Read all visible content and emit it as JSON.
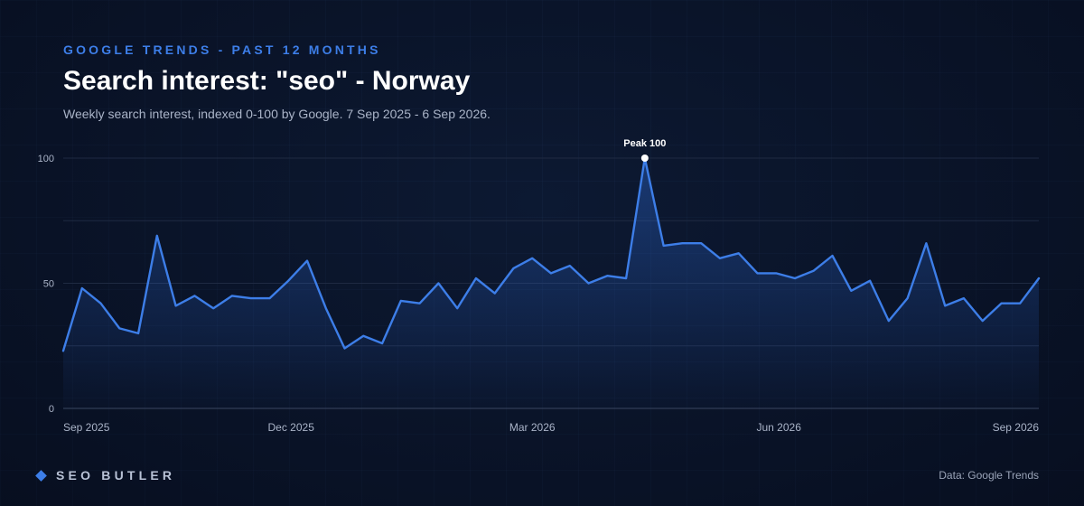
{
  "header": {
    "eyebrow": "GOOGLE TRENDS - PAST 12 MONTHS",
    "title": "Search interest: \"seo\" - Norway",
    "subtitle": "Weekly search interest, indexed 0-100 by Google. 7 Sep 2025 - 6 Sep 2026."
  },
  "chart_data": {
    "type": "area",
    "title": "Search interest: \"seo\" - Norway",
    "xlabel": "",
    "ylabel": "",
    "x_range": [
      "2025-09-07",
      "2026-09-06"
    ],
    "ylim": [
      0,
      100
    ],
    "y_ticks": [
      0,
      50,
      100
    ],
    "x_ticks": [
      {
        "label": "Sep 2025",
        "date": "2025-09-07"
      },
      {
        "label": "Dec 2025",
        "date": "2025-12-01"
      },
      {
        "label": "Mar 2026",
        "date": "2026-03-01"
      },
      {
        "label": "Jun 2026",
        "date": "2026-06-01"
      },
      {
        "label": "Sep 2026",
        "date": "2026-09-06"
      }
    ],
    "grid": true,
    "series": [
      {
        "color": "#3d7ee8",
        "values": [
          23,
          48,
          42,
          32,
          30,
          69,
          41,
          45,
          40,
          45,
          44,
          44,
          51,
          59,
          40,
          24,
          29,
          26,
          43,
          42,
          50,
          40,
          52,
          46,
          56,
          60,
          54,
          57,
          50,
          53,
          52,
          100,
          65,
          66,
          66,
          60,
          62,
          54,
          54,
          52,
          55,
          61,
          47,
          51,
          35,
          44,
          66,
          41,
          44,
          35,
          42,
          42,
          52
        ]
      }
    ],
    "annotations": [
      {
        "text": "Peak 100",
        "date": "2026-04-12",
        "value": 100
      }
    ]
  },
  "footer": {
    "brand": "SEO BUTLER",
    "brand_icon": "diamond-icon",
    "source": "Data: Google Trends"
  }
}
